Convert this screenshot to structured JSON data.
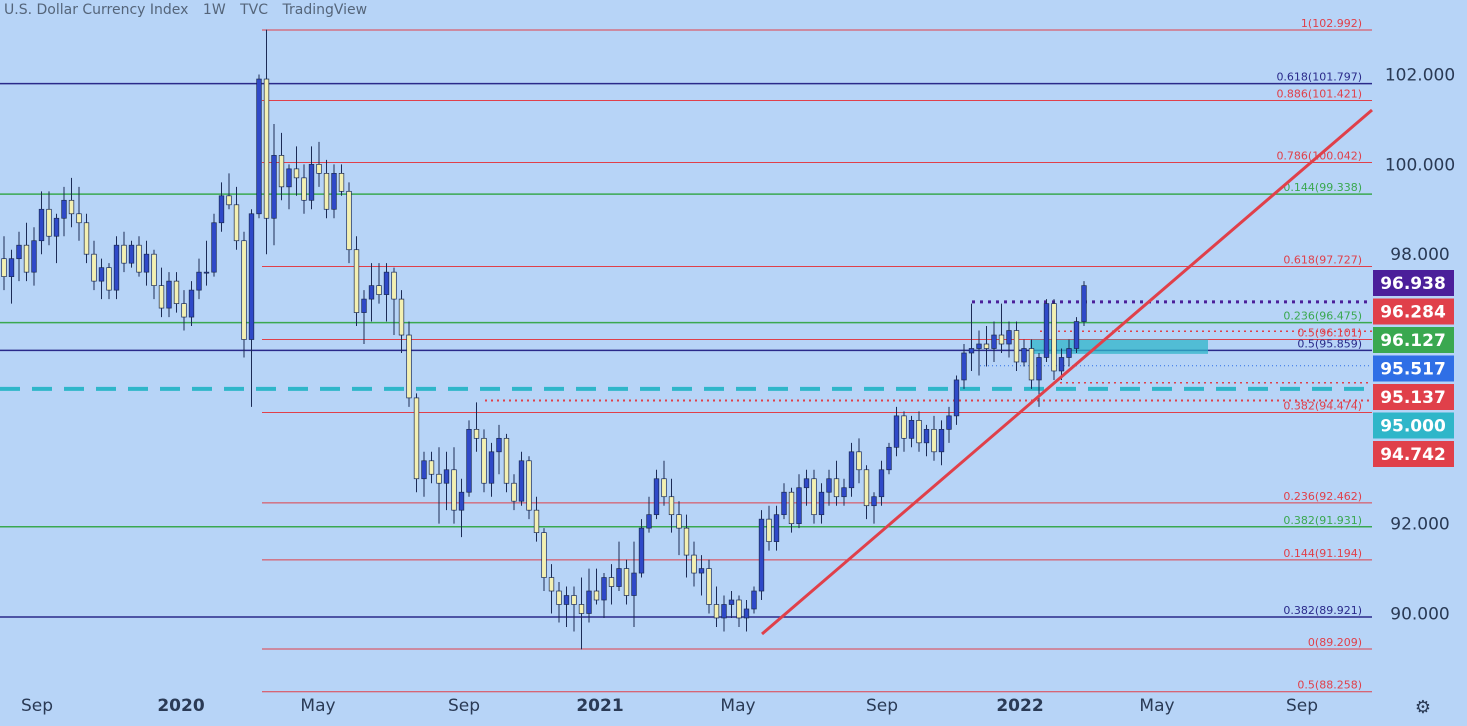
{
  "header": {
    "symbol": "U.S. Dollar Currency Index",
    "interval": "1W",
    "exchange": "TVC",
    "source": "TradingView"
  },
  "colors": {
    "background": "#b7d4f7",
    "up_candle": "#f3f0b2",
    "down_candle": "#2f49c8",
    "red_line": "#e0404a",
    "green_line": "#3aa850",
    "navy_line": "#2a2a8a",
    "cyan": "#2fb6c9",
    "purple": "#4b1f9a"
  },
  "chart_data": {
    "type": "candlestick",
    "y_axis": {
      "min": 88.258,
      "max": 103.5,
      "ticks": [
        "102.000",
        "100.000",
        "98.000",
        "92.000",
        "90.000"
      ]
    },
    "x_axis": {
      "labels": [
        "Sep",
        "2020",
        "May",
        "Sep",
        "2021",
        "May",
        "Sep",
        "2022",
        "May",
        "Sep"
      ]
    },
    "fib_levels": [
      {
        "label": "1(102.992)",
        "value": 102.992,
        "color": "red",
        "full": false
      },
      {
        "label": "0.618(101.797)",
        "value": 101.797,
        "color": "navy",
        "full": true
      },
      {
        "label": "0.886(101.421)",
        "value": 101.421,
        "color": "red",
        "full": false
      },
      {
        "label": "0.786(100.042)",
        "value": 100.042,
        "color": "red",
        "full": false
      },
      {
        "label": "0.144(99.338)",
        "value": 99.338,
        "color": "green",
        "full": true
      },
      {
        "label": "0.618(97.727)",
        "value": 97.727,
        "color": "red",
        "full": false
      },
      {
        "label": "0.236(96.475)",
        "value": 96.475,
        "color": "green",
        "full": true
      },
      {
        "label": "0.5(96.101)",
        "value": 96.101,
        "color": "red",
        "full": false
      },
      {
        "label": "0.5(95.859)",
        "value": 95.859,
        "color": "navy",
        "full": true
      },
      {
        "label": "0.382(94.474)",
        "value": 94.474,
        "color": "red",
        "full": false
      },
      {
        "label": "0.236(92.462)",
        "value": 92.462,
        "color": "red",
        "full": false
      },
      {
        "label": "0.382(91.931)",
        "value": 91.931,
        "color": "green",
        "full": true
      },
      {
        "label": "0.144(91.194)",
        "value": 91.194,
        "color": "red",
        "full": false
      },
      {
        "label": "0.382(89.921)",
        "value": 89.921,
        "color": "navy",
        "full": true
      },
      {
        "label": "0(89.209)",
        "value": 89.209,
        "color": "red",
        "full": false
      },
      {
        "label": "0.5(88.258)",
        "value": 88.258,
        "color": "red",
        "full": false
      }
    ],
    "price_badges": [
      {
        "label": "96.938",
        "value": 96.938,
        "color": "#4b1f9a"
      },
      {
        "label": "96.284",
        "value": 96.284,
        "color": "#e0404a"
      },
      {
        "label": "96.127",
        "value": 96.127,
        "color": "#3aa850"
      },
      {
        "label": "95.517",
        "value": 95.517,
        "color": "#2f6fe6"
      },
      {
        "label": "95.137",
        "value": 95.137,
        "color": "#e0404a"
      },
      {
        "label": "95.000",
        "value": 95.0,
        "color": "#2fb6c9"
      },
      {
        "label": "94.742",
        "value": 94.742,
        "color": "#e0404a"
      }
    ],
    "candles": [
      [
        97.9,
        98.4,
        97.2,
        97.5
      ],
      [
        97.5,
        98.1,
        96.9,
        97.9
      ],
      [
        97.9,
        98.5,
        97.4,
        98.2
      ],
      [
        98.2,
        98.7,
        97.4,
        97.6
      ],
      [
        97.6,
        98.6,
        97.3,
        98.3
      ],
      [
        98.3,
        99.4,
        98.0,
        99.0
      ],
      [
        99.0,
        99.4,
        98.2,
        98.4
      ],
      [
        98.4,
        98.9,
        97.8,
        98.8
      ],
      [
        98.8,
        99.5,
        98.4,
        99.2
      ],
      [
        99.2,
        99.7,
        98.6,
        98.9
      ],
      [
        98.9,
        99.5,
        98.3,
        98.7
      ],
      [
        98.7,
        98.9,
        97.8,
        98.0
      ],
      [
        98.0,
        98.3,
        97.2,
        97.4
      ],
      [
        97.4,
        97.9,
        97.0,
        97.7
      ],
      [
        97.7,
        97.8,
        97.0,
        97.2
      ],
      [
        97.2,
        98.4,
        97.0,
        98.2
      ],
      [
        98.2,
        98.5,
        97.6,
        97.8
      ],
      [
        97.8,
        98.3,
        97.7,
        98.2
      ],
      [
        98.2,
        98.4,
        97.5,
        97.6
      ],
      [
        97.6,
        98.3,
        97.3,
        98.0
      ],
      [
        98.0,
        98.1,
        97.0,
        97.3
      ],
      [
        97.3,
        97.7,
        96.6,
        96.8
      ],
      [
        96.8,
        97.6,
        96.6,
        97.4
      ],
      [
        97.4,
        97.6,
        96.7,
        96.9
      ],
      [
        96.9,
        97.2,
        96.3,
        96.6
      ],
      [
        96.6,
        97.4,
        96.4,
        97.2
      ],
      [
        97.2,
        97.9,
        97.0,
        97.6
      ],
      [
        97.6,
        98.3,
        97.3,
        97.6
      ],
      [
        97.6,
        98.9,
        97.5,
        98.7
      ],
      [
        98.7,
        99.6,
        98.5,
        99.3
      ],
      [
        99.3,
        99.8,
        99.0,
        99.1
      ],
      [
        99.1,
        99.5,
        98.1,
        98.3
      ],
      [
        98.3,
        98.5,
        95.7,
        96.1
      ],
      [
        96.1,
        99.0,
        94.6,
        98.9
      ],
      [
        98.9,
        102.0,
        98.8,
        101.9
      ],
      [
        101.9,
        103.0,
        98.0,
        98.8
      ],
      [
        98.8,
        100.9,
        98.2,
        100.2
      ],
      [
        100.2,
        100.7,
        99.2,
        99.5
      ],
      [
        99.5,
        100.0,
        99.0,
        99.9
      ],
      [
        99.9,
        100.4,
        99.3,
        99.7
      ],
      [
        99.7,
        100.0,
        98.9,
        99.2
      ],
      [
        99.2,
        100.4,
        99.0,
        100.0
      ],
      [
        100.0,
        100.5,
        99.5,
        99.8
      ],
      [
        99.8,
        100.1,
        98.8,
        99.0
      ],
      [
        99.0,
        100.0,
        98.8,
        99.8
      ],
      [
        99.8,
        100.0,
        99.3,
        99.4
      ],
      [
        99.4,
        99.6,
        97.8,
        98.1
      ],
      [
        98.1,
        98.4,
        96.4,
        96.7
      ],
      [
        96.7,
        97.2,
        96.0,
        97.0
      ],
      [
        97.0,
        97.8,
        96.5,
        97.3
      ],
      [
        97.3,
        97.8,
        96.9,
        97.1
      ],
      [
        97.1,
        97.8,
        96.5,
        97.6
      ],
      [
        97.6,
        97.7,
        96.2,
        97.0
      ],
      [
        97.0,
        97.2,
        95.8,
        96.2
      ],
      [
        96.2,
        96.5,
        94.6,
        94.8
      ],
      [
        94.8,
        94.9,
        92.7,
        93.0
      ],
      [
        93.0,
        93.6,
        92.6,
        93.4
      ],
      [
        93.4,
        93.6,
        92.9,
        93.1
      ],
      [
        93.1,
        93.7,
        92.0,
        92.9
      ],
      [
        92.9,
        93.6,
        92.3,
        93.2
      ],
      [
        93.2,
        93.7,
        92.0,
        92.3
      ],
      [
        92.3,
        93.0,
        91.7,
        92.7
      ],
      [
        92.7,
        94.3,
        92.6,
        94.1
      ],
      [
        94.1,
        94.7,
        93.6,
        93.9
      ],
      [
        93.9,
        94.1,
        92.7,
        92.9
      ],
      [
        92.9,
        93.8,
        92.6,
        93.6
      ],
      [
        93.6,
        94.2,
        93.1,
        93.9
      ],
      [
        93.9,
        94.0,
        92.7,
        92.9
      ],
      [
        92.9,
        93.1,
        92.3,
        92.5
      ],
      [
        92.5,
        93.6,
        92.4,
        93.4
      ],
      [
        93.4,
        93.5,
        92.1,
        92.3
      ],
      [
        92.3,
        92.6,
        91.6,
        91.8
      ],
      [
        91.8,
        91.9,
        90.5,
        90.8
      ],
      [
        90.8,
        91.1,
        90.0,
        90.5
      ],
      [
        90.5,
        90.7,
        89.8,
        90.2
      ],
      [
        90.2,
        90.6,
        89.7,
        90.4
      ],
      [
        90.4,
        90.6,
        89.6,
        90.2
      ],
      [
        90.2,
        90.8,
        89.2,
        90.0
      ],
      [
        90.0,
        91.0,
        89.8,
        90.5
      ],
      [
        90.5,
        91.0,
        90.2,
        90.3
      ],
      [
        90.3,
        90.9,
        89.9,
        90.8
      ],
      [
        90.8,
        91.1,
        90.2,
        90.6
      ],
      [
        90.6,
        91.6,
        90.5,
        91.0
      ],
      [
        91.0,
        91.2,
        90.2,
        90.4
      ],
      [
        90.4,
        91.6,
        89.7,
        90.9
      ],
      [
        90.9,
        92.1,
        90.8,
        91.9
      ],
      [
        91.9,
        92.6,
        91.8,
        92.2
      ],
      [
        92.2,
        93.2,
        92.1,
        93.0
      ],
      [
        93.0,
        93.4,
        92.4,
        92.6
      ],
      [
        92.6,
        93.0,
        91.8,
        92.2
      ],
      [
        92.2,
        92.5,
        91.3,
        91.9
      ],
      [
        91.9,
        92.2,
        90.8,
        91.3
      ],
      [
        91.3,
        91.6,
        90.6,
        90.9
      ],
      [
        90.9,
        91.3,
        90.4,
        91.0
      ],
      [
        91.0,
        91.2,
        90.0,
        90.2
      ],
      [
        90.2,
        90.6,
        89.7,
        89.9
      ],
      [
        89.9,
        90.4,
        89.6,
        90.2
      ],
      [
        90.2,
        90.5,
        89.9,
        90.3
      ],
      [
        90.3,
        90.4,
        89.7,
        89.9
      ],
      [
        89.9,
        90.3,
        89.6,
        90.1
      ],
      [
        90.1,
        90.6,
        90.0,
        90.5
      ],
      [
        90.5,
        92.3,
        90.3,
        92.1
      ],
      [
        92.1,
        92.4,
        91.4,
        91.6
      ],
      [
        91.6,
        92.4,
        91.4,
        92.2
      ],
      [
        92.2,
        92.9,
        92.1,
        92.7
      ],
      [
        92.7,
        92.8,
        91.8,
        92.0
      ],
      [
        92.0,
        93.1,
        91.9,
        92.8
      ],
      [
        92.8,
        93.2,
        92.4,
        93.0
      ],
      [
        93.0,
        93.2,
        92.0,
        92.2
      ],
      [
        92.2,
        92.9,
        92.0,
        92.7
      ],
      [
        92.7,
        93.2,
        92.4,
        93.0
      ],
      [
        93.0,
        93.4,
        92.4,
        92.6
      ],
      [
        92.6,
        93.0,
        92.4,
        92.8
      ],
      [
        92.8,
        93.8,
        92.6,
        93.6
      ],
      [
        93.6,
        93.9,
        92.9,
        93.2
      ],
      [
        93.2,
        93.3,
        92.1,
        92.4
      ],
      [
        92.4,
        92.7,
        92.0,
        92.6
      ],
      [
        92.6,
        93.4,
        92.4,
        93.2
      ],
      [
        93.2,
        93.8,
        93.1,
        93.7
      ],
      [
        93.7,
        94.6,
        93.5,
        94.4
      ],
      [
        94.4,
        94.5,
        93.6,
        93.9
      ],
      [
        93.9,
        94.4,
        93.7,
        94.3
      ],
      [
        94.3,
        94.5,
        93.6,
        93.8
      ],
      [
        93.8,
        94.2,
        93.5,
        94.1
      ],
      [
        94.1,
        94.4,
        93.4,
        93.6
      ],
      [
        93.6,
        94.3,
        93.3,
        94.1
      ],
      [
        94.1,
        94.6,
        93.8,
        94.4
      ],
      [
        94.4,
        95.3,
        94.2,
        95.2
      ],
      [
        95.2,
        96.0,
        95.0,
        95.8
      ],
      [
        95.8,
        96.9,
        95.4,
        95.9
      ],
      [
        95.9,
        96.3,
        95.3,
        96.0
      ],
      [
        96.0,
        96.4,
        95.5,
        95.9
      ],
      [
        95.9,
        96.5,
        95.6,
        96.2
      ],
      [
        96.2,
        96.9,
        95.8,
        96.0
      ],
      [
        96.0,
        96.5,
        95.7,
        96.3
      ],
      [
        96.3,
        96.5,
        95.4,
        95.6
      ],
      [
        95.6,
        96.1,
        95.5,
        95.9
      ],
      [
        95.9,
        96.1,
        95.0,
        95.2
      ],
      [
        95.2,
        95.8,
        94.6,
        95.7
      ],
      [
        95.7,
        97.0,
        95.6,
        96.9
      ],
      [
        96.9,
        97.0,
        95.2,
        95.4
      ],
      [
        95.4,
        95.9,
        95.2,
        95.7
      ],
      [
        95.7,
        96.1,
        95.5,
        95.9
      ],
      [
        95.9,
        96.6,
        95.8,
        96.5
      ],
      [
        96.5,
        97.4,
        96.4,
        97.3
      ]
    ]
  }
}
